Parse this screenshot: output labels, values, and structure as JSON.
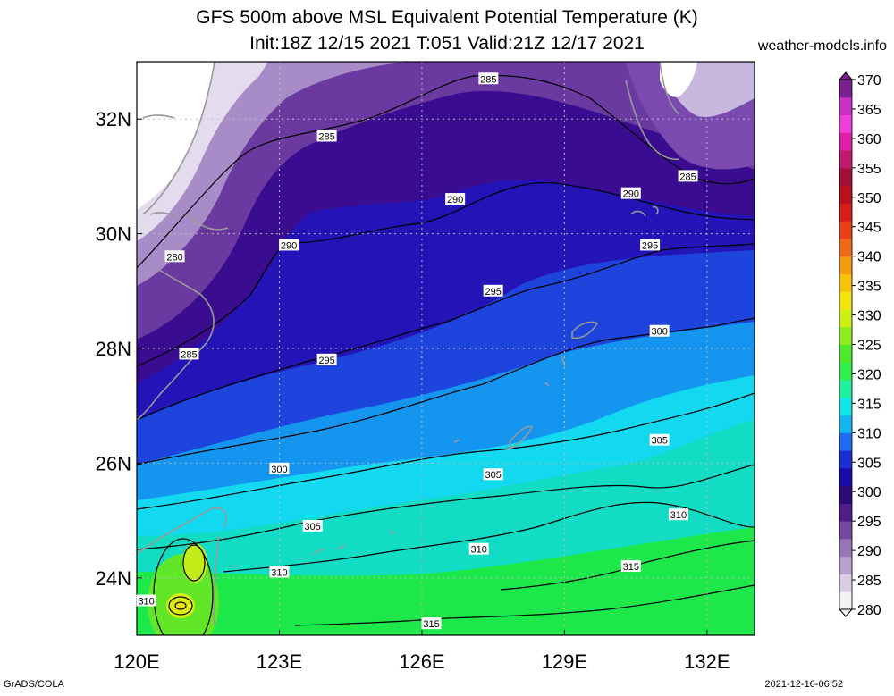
{
  "title": {
    "line1": "GFS 500m above MSL Equivalent Potential Temperature (K)",
    "line2": "Init:18Z 12/15 2021 T:051 Valid:21Z 12/17 2021"
  },
  "brand": "weather-models.info",
  "footer": {
    "left": "GrADS/COLA",
    "right": "2021-12-16-06:52"
  },
  "map": {
    "lon_range": [
      120,
      133
    ],
    "lat_range": [
      23,
      33
    ],
    "x_ticks": [
      {
        "value": 120,
        "label": "120E"
      },
      {
        "value": 123,
        "label": "123E"
      },
      {
        "value": 126,
        "label": "126E"
      },
      {
        "value": 129,
        "label": "129E"
      },
      {
        "value": 132,
        "label": "132E"
      }
    ],
    "y_ticks": [
      {
        "value": 24,
        "label": "24N"
      },
      {
        "value": 26,
        "label": "26N"
      },
      {
        "value": 28,
        "label": "28N"
      },
      {
        "value": 30,
        "label": "30N"
      },
      {
        "value": 32,
        "label": "32N"
      }
    ],
    "contour_labels": [
      {
        "text": "285",
        "lon": 127.4,
        "lat": 32.7
      },
      {
        "text": "285",
        "lon": 124.0,
        "lat": 31.7
      },
      {
        "text": "285",
        "lon": 131.6,
        "lat": 31.0
      },
      {
        "text": "290",
        "lon": 130.4,
        "lat": 30.7
      },
      {
        "text": "290",
        "lon": 126.7,
        "lat": 30.6
      },
      {
        "text": "290",
        "lon": 123.2,
        "lat": 29.8
      },
      {
        "text": "280",
        "lon": 120.8,
        "lat": 29.6
      },
      {
        "text": "295",
        "lon": 130.8,
        "lat": 29.8
      },
      {
        "text": "295",
        "lon": 127.5,
        "lat": 29.0
      },
      {
        "text": "300",
        "lon": 131.0,
        "lat": 28.3
      },
      {
        "text": "285",
        "lon": 121.1,
        "lat": 27.9
      },
      {
        "text": "295",
        "lon": 124.0,
        "lat": 27.8
      },
      {
        "text": "305",
        "lon": 131.0,
        "lat": 26.4
      },
      {
        "text": "300",
        "lon": 123.0,
        "lat": 25.9
      },
      {
        "text": "305",
        "lon": 127.5,
        "lat": 25.8
      },
      {
        "text": "305",
        "lon": 123.7,
        "lat": 24.9
      },
      {
        "text": "310",
        "lon": 131.4,
        "lat": 25.1
      },
      {
        "text": "310",
        "lon": 127.2,
        "lat": 24.5
      },
      {
        "text": "310",
        "lon": 123.0,
        "lat": 24.1
      },
      {
        "text": "315",
        "lon": 130.4,
        "lat": 24.2
      },
      {
        "text": "310",
        "lon": 120.2,
        "lat": 23.6
      },
      {
        "text": "315",
        "lon": 126.2,
        "lat": 23.2
      }
    ]
  },
  "colorbar": {
    "unit": "K",
    "labels": [
      "280",
      "285",
      "290",
      "295",
      "300",
      "305",
      "310",
      "315",
      "320",
      "325",
      "330",
      "335",
      "340",
      "345",
      "350",
      "355",
      "360",
      "365",
      "370"
    ],
    "colors": [
      "#f4f0f6",
      "#d9cde4",
      "#b9a2cf",
      "#9676b7",
      "#74489f",
      "#4f1d87",
      "#2c0a7a",
      "#1a0aa8",
      "#1a2fd2",
      "#1f6cf0",
      "#13b4f2",
      "#12e6e6",
      "#20f0a0",
      "#30ee50",
      "#50e82c",
      "#90ea20",
      "#cfef14",
      "#f2e40e",
      "#f8c208",
      "#f49a10",
      "#ef6a18",
      "#e8401a",
      "#d61e1c",
      "#b8101c",
      "#a01038",
      "#c01a6c",
      "#e020a8",
      "#ee40d8",
      "#c830c8",
      "#7a2090"
    ]
  }
}
